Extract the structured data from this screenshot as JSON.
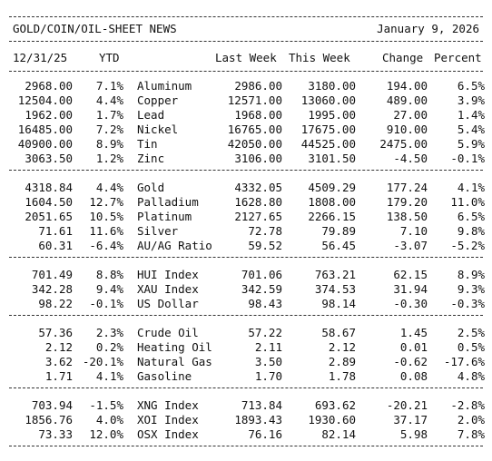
{
  "header": {
    "title": "GOLD/COIN/OIL-SHEET NEWS",
    "date": "January 9, 2026"
  },
  "columns": {
    "prev": "12/31/25",
    "ytd": "YTD",
    "last_week": "Last Week",
    "this_week": "This Week",
    "change": "Change",
    "percent": "Percent"
  },
  "groups": [
    {
      "rows": [
        {
          "prev": "2968.00",
          "ytd": "7.1%",
          "name": "Aluminum",
          "last": "2986.00",
          "this": "3180.00",
          "change": "194.00",
          "pct": "6.5%"
        },
        {
          "prev": "12504.00",
          "ytd": "4.4%",
          "name": "Copper",
          "last": "12571.00",
          "this": "13060.00",
          "change": "489.00",
          "pct": "3.9%"
        },
        {
          "prev": "1962.00",
          "ytd": "1.7%",
          "name": "Lead",
          "last": "1968.00",
          "this": "1995.00",
          "change": "27.00",
          "pct": "1.4%"
        },
        {
          "prev": "16485.00",
          "ytd": "7.2%",
          "name": "Nickel",
          "last": "16765.00",
          "this": "17675.00",
          "change": "910.00",
          "pct": "5.4%"
        },
        {
          "prev": "40900.00",
          "ytd": "8.9%",
          "name": "Tin",
          "last": "42050.00",
          "this": "44525.00",
          "change": "2475.00",
          "pct": "5.9%"
        },
        {
          "prev": "3063.50",
          "ytd": "1.2%",
          "name": "Zinc",
          "last": "3106.00",
          "this": "3101.50",
          "change": "-4.50",
          "pct": "-0.1%"
        }
      ]
    },
    {
      "rows": [
        {
          "prev": "4318.84",
          "ytd": "4.4%",
          "name": "Gold",
          "last": "4332.05",
          "this": "4509.29",
          "change": "177.24",
          "pct": "4.1%"
        },
        {
          "prev": "1604.50",
          "ytd": "12.7%",
          "name": "Palladium",
          "last": "1628.80",
          "this": "1808.00",
          "change": "179.20",
          "pct": "11.0%"
        },
        {
          "prev": "2051.65",
          "ytd": "10.5%",
          "name": "Platinum",
          "last": "2127.65",
          "this": "2266.15",
          "change": "138.50",
          "pct": "6.5%"
        },
        {
          "prev": "71.61",
          "ytd": "11.6%",
          "name": "Silver",
          "last": "72.78",
          "this": "79.89",
          "change": "7.10",
          "pct": "9.8%"
        },
        {
          "prev": "60.31",
          "ytd": "-6.4%",
          "name": "AU/AG Ratio",
          "last": "59.52",
          "this": "56.45",
          "change": "-3.07",
          "pct": "-5.2%"
        }
      ]
    },
    {
      "rows": [
        {
          "prev": "701.49",
          "ytd": "8.8%",
          "name": "HUI Index",
          "last": "701.06",
          "this": "763.21",
          "change": "62.15",
          "pct": "8.9%"
        },
        {
          "prev": "342.28",
          "ytd": "9.4%",
          "name": "XAU Index",
          "last": "342.59",
          "this": "374.53",
          "change": "31.94",
          "pct": "9.3%"
        },
        {
          "prev": "98.22",
          "ytd": "-0.1%",
          "name": "US Dollar",
          "last": "98.43",
          "this": "98.14",
          "change": "-0.30",
          "pct": "-0.3%"
        }
      ]
    },
    {
      "rows": [
        {
          "prev": "57.36",
          "ytd": "2.3%",
          "name": "Crude Oil",
          "last": "57.22",
          "this": "58.67",
          "change": "1.45",
          "pct": "2.5%"
        },
        {
          "prev": "2.12",
          "ytd": "0.2%",
          "name": "Heating Oil",
          "last": "2.11",
          "this": "2.12",
          "change": "0.01",
          "pct": "0.5%"
        },
        {
          "prev": "3.62",
          "ytd": "-20.1%",
          "name": "Natural Gas",
          "last": "3.50",
          "this": "2.89",
          "change": "-0.62",
          "pct": "-17.6%"
        },
        {
          "prev": "1.71",
          "ytd": "4.1%",
          "name": "Gasoline",
          "last": "1.70",
          "this": "1.78",
          "change": "0.08",
          "pct": "4.8%"
        }
      ]
    },
    {
      "rows": [
        {
          "prev": "703.94",
          "ytd": "-1.5%",
          "name": "XNG Index",
          "last": "713.84",
          "this": "693.62",
          "change": "-20.21",
          "pct": "-2.8%"
        },
        {
          "prev": "1856.76",
          "ytd": "4.0%",
          "name": "XOI Index",
          "last": "1893.43",
          "this": "1930.60",
          "change": "37.17",
          "pct": "2.0%"
        },
        {
          "prev": "73.33",
          "ytd": "12.0%",
          "name": "OSX Index",
          "last": "76.16",
          "this": "82.14",
          "change": "5.98",
          "pct": "7.8%"
        }
      ]
    }
  ]
}
